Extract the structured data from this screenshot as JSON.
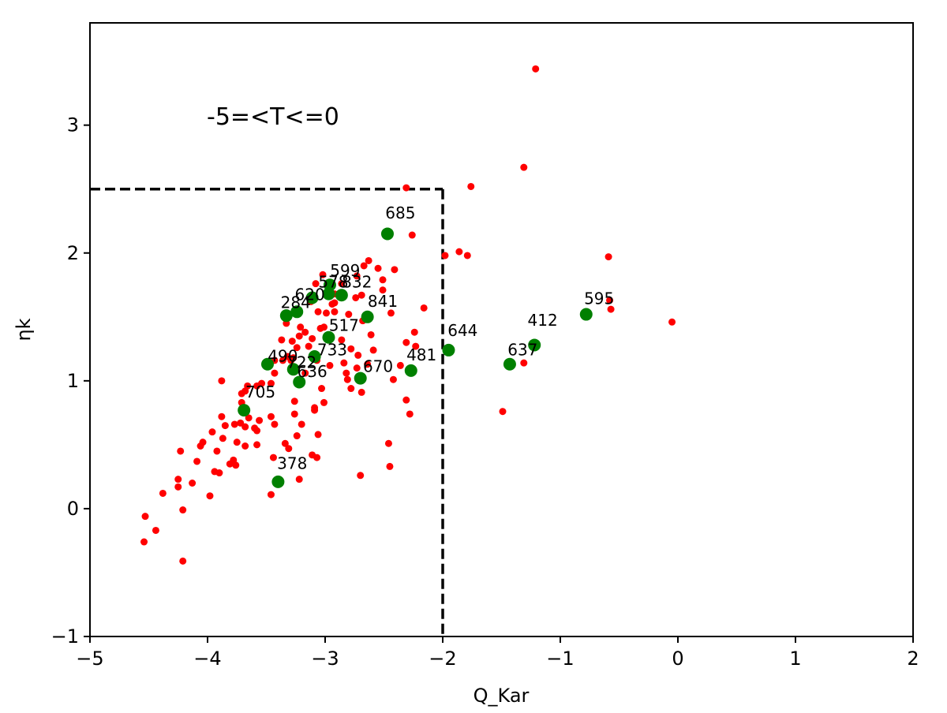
{
  "chart_data": {
    "type": "scatter",
    "title": "",
    "xlabel": "Q_Kar",
    "ylabel": "ηk",
    "xlim": [
      -5,
      2
    ],
    "ylim": [
      -1,
      3.8
    ],
    "xticks": [
      -5,
      -4,
      -3,
      -2,
      -1,
      0,
      1,
      2
    ],
    "yticks": [
      -1,
      0,
      1,
      2,
      3
    ],
    "xtick_labels": [
      "−5",
      "−4",
      "−3",
      "−2",
      "−1",
      "0",
      "1",
      "2"
    ],
    "ytick_labels": [
      "−1",
      "0",
      "1",
      "2",
      "3"
    ],
    "grid": false,
    "annotation_text": "-5=<T<=0",
    "threshold_box": {
      "x_max": -2,
      "y_max": 2.5,
      "style": "dashed"
    },
    "colors": {
      "red": "#ff0000",
      "green": "#008000",
      "threshold": "#000000"
    },
    "series": [
      {
        "color": "red",
        "points": [
          [
            -1.21,
            3.44
          ],
          [
            -1.31,
            2.67
          ],
          [
            -2.31,
            2.51
          ],
          [
            -1.76,
            2.52
          ],
          [
            -2.26,
            2.14
          ],
          [
            -1.98,
            1.98
          ],
          [
            -1.86,
            2.01
          ],
          [
            -1.79,
            1.98
          ],
          [
            -0.59,
            1.97
          ],
          [
            -0.58,
            1.63
          ],
          [
            -0.57,
            1.56
          ],
          [
            -0.05,
            1.46
          ],
          [
            -1.49,
            0.76
          ],
          [
            -1.31,
            1.14
          ],
          [
            -2.63,
            1.94
          ],
          [
            -2.55,
            1.88
          ],
          [
            -2.51,
            1.79
          ],
          [
            -2.41,
            1.87
          ],
          [
            -2.51,
            1.71
          ],
          [
            -2.67,
            1.9
          ],
          [
            -2.73,
            1.82
          ],
          [
            -2.86,
            1.76
          ],
          [
            -2.92,
            1.68
          ],
          [
            -2.74,
            1.65
          ],
          [
            -2.69,
            1.67
          ],
          [
            -3.02,
            1.83
          ],
          [
            -3.08,
            1.76
          ],
          [
            -2.94,
            1.6
          ],
          [
            -2.92,
            1.54
          ],
          [
            -2.99,
            1.53
          ],
          [
            -3.12,
            1.62
          ],
          [
            -3.06,
            1.54
          ],
          [
            -3.04,
            1.41
          ],
          [
            -3.21,
            1.42
          ],
          [
            -3.33,
            1.45
          ],
          [
            -3.22,
            1.35
          ],
          [
            -3.17,
            1.38
          ],
          [
            -3.11,
            1.33
          ],
          [
            -3.28,
            1.31
          ],
          [
            -3.37,
            1.32
          ],
          [
            -3.24,
            1.26
          ],
          [
            -3.32,
            1.19
          ],
          [
            -3.36,
            1.16
          ],
          [
            -3.43,
            1.16
          ],
          [
            -3.27,
            1.18
          ],
          [
            -2.86,
            1.32
          ],
          [
            -2.78,
            1.25
          ],
          [
            -2.72,
            1.2
          ],
          [
            -2.68,
            1.47
          ],
          [
            -2.61,
            1.36
          ],
          [
            -2.44,
            1.53
          ],
          [
            -2.31,
            1.3
          ],
          [
            -2.24,
            1.38
          ],
          [
            -2.16,
            1.57
          ],
          [
            -2.23,
            1.27
          ],
          [
            -2.64,
            1.13
          ],
          [
            -2.73,
            1.1
          ],
          [
            -2.81,
            1.01
          ],
          [
            -2.69,
            0.91
          ],
          [
            -2.96,
            1.12
          ],
          [
            -3.07,
            1.16
          ],
          [
            -3.17,
            1.06
          ],
          [
            -3.29,
            1.16
          ],
          [
            -3.43,
            1.06
          ],
          [
            -3.46,
            0.98
          ],
          [
            -3.03,
            0.94
          ],
          [
            -3.01,
            0.83
          ],
          [
            -3.09,
            0.79
          ],
          [
            -3.26,
            0.84
          ],
          [
            -3.54,
            0.98
          ],
          [
            -3.58,
            0.96
          ],
          [
            -3.66,
            0.96
          ],
          [
            -3.68,
            0.92
          ],
          [
            -3.71,
            0.9
          ],
          [
            -3.88,
            1.0
          ],
          [
            -3.71,
            0.83
          ],
          [
            -3.65,
            0.71
          ],
          [
            -3.56,
            0.69
          ],
          [
            -3.46,
            0.72
          ],
          [
            -3.43,
            0.66
          ],
          [
            -3.26,
            0.74
          ],
          [
            -3.24,
            0.57
          ],
          [
            -3.34,
            0.51
          ],
          [
            -3.06,
            0.58
          ],
          [
            -3.31,
            0.47
          ],
          [
            -3.2,
            0.66
          ],
          [
            -3.09,
            0.77
          ],
          [
            -3.6,
            0.63
          ],
          [
            -3.58,
            0.61
          ],
          [
            -3.68,
            0.64
          ],
          [
            -3.72,
            0.67
          ],
          [
            -3.77,
            0.66
          ],
          [
            -3.85,
            0.65
          ],
          [
            -3.88,
            0.72
          ],
          [
            -3.96,
            0.6
          ],
          [
            -4.04,
            0.52
          ],
          [
            -4.06,
            0.49
          ],
          [
            -3.92,
            0.45
          ],
          [
            -3.87,
            0.55
          ],
          [
            -3.75,
            0.52
          ],
          [
            -3.68,
            0.49
          ],
          [
            -3.58,
            0.5
          ],
          [
            -3.78,
            0.38
          ],
          [
            -3.76,
            0.34
          ],
          [
            -3.81,
            0.35
          ],
          [
            -3.94,
            0.29
          ],
          [
            -3.9,
            0.28
          ],
          [
            -4.09,
            0.37
          ],
          [
            -4.23,
            0.45
          ],
          [
            -4.25,
            0.23
          ],
          [
            -4.13,
            0.2
          ],
          [
            -4.25,
            0.17
          ],
          [
            -3.98,
            0.1
          ],
          [
            -3.44,
            0.4
          ],
          [
            -3.46,
            0.11
          ],
          [
            -3.22,
            0.23
          ],
          [
            -3.11,
            0.42
          ],
          [
            -3.07,
            0.4
          ],
          [
            -2.7,
            0.26
          ],
          [
            -2.45,
            0.33
          ],
          [
            -2.46,
            0.51
          ],
          [
            -2.28,
            0.74
          ],
          [
            -2.31,
            0.85
          ],
          [
            -4.38,
            0.12
          ],
          [
            -4.21,
            -0.01
          ],
          [
            -4.53,
            -0.06
          ],
          [
            -4.44,
            -0.17
          ],
          [
            -4.54,
            -0.26
          ],
          [
            -4.21,
            -0.41
          ],
          [
            -2.84,
            1.14
          ],
          [
            -2.82,
            1.06
          ],
          [
            -2.78,
            0.94
          ],
          [
            -2.59,
            1.24
          ],
          [
            -2.36,
            1.12
          ],
          [
            -2.42,
            1.01
          ],
          [
            -3.14,
            1.27
          ],
          [
            -3.01,
            1.42
          ],
          [
            -2.92,
            1.61
          ],
          [
            -2.8,
            1.52
          ]
        ]
      },
      {
        "color": "green",
        "points": [
          [
            -2.47,
            2.15
          ],
          [
            -2.96,
            1.75
          ],
          [
            -2.86,
            1.67
          ],
          [
            -2.97,
            1.68
          ],
          [
            -3.11,
            1.65
          ],
          [
            -3.24,
            1.54
          ],
          [
            -3.33,
            1.51
          ],
          [
            -2.64,
            1.5
          ],
          [
            -2.97,
            1.34
          ],
          [
            -3.49,
            1.13
          ],
          [
            -3.27,
            1.09
          ],
          [
            -3.09,
            1.19
          ],
          [
            -3.22,
            0.99
          ],
          [
            -2.7,
            1.02
          ],
          [
            -2.27,
            1.08
          ],
          [
            -1.95,
            1.24
          ],
          [
            -1.43,
            1.13
          ],
          [
            -1.22,
            1.28
          ],
          [
            -0.78,
            1.52
          ],
          [
            -3.69,
            0.77
          ],
          [
            -3.4,
            0.21
          ]
        ]
      }
    ],
    "point_labels": [
      {
        "text": "685",
        "x": -2.36,
        "y": 2.27
      },
      {
        "text": "599",
        "x": -2.83,
        "y": 1.82
      },
      {
        "text": "578",
        "x": -2.93,
        "y": 1.73
      },
      {
        "text": "832",
        "x": -2.73,
        "y": 1.73
      },
      {
        "text": "620",
        "x": -3.13,
        "y": 1.63
      },
      {
        "text": "284",
        "x": -3.25,
        "y": 1.57
      },
      {
        "text": "841",
        "x": -2.51,
        "y": 1.58
      },
      {
        "text": "517",
        "x": -2.84,
        "y": 1.39
      },
      {
        "text": "733",
        "x": -2.94,
        "y": 1.2
      },
      {
        "text": "490",
        "x": -3.36,
        "y": 1.15
      },
      {
        "text": "722",
        "x": -3.2,
        "y": 1.1
      },
      {
        "text": "636",
        "x": -3.11,
        "y": 1.03
      },
      {
        "text": "670",
        "x": -2.55,
        "y": 1.07
      },
      {
        "text": "481",
        "x": -2.18,
        "y": 1.16
      },
      {
        "text": "644",
        "x": -1.83,
        "y": 1.35
      },
      {
        "text": "412",
        "x": -1.15,
        "y": 1.43
      },
      {
        "text": "637",
        "x": -1.32,
        "y": 1.2
      },
      {
        "text": "595",
        "x": -0.67,
        "y": 1.6
      },
      {
        "text": "705",
        "x": -3.55,
        "y": 0.87
      },
      {
        "text": "378",
        "x": -3.28,
        "y": 0.31
      }
    ]
  }
}
